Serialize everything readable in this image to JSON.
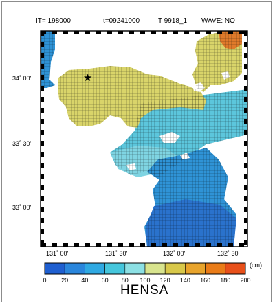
{
  "header": {
    "iteration": "IT=  198000",
    "time": "t=09241000",
    "typhoon": "T 9918_1",
    "wave": "WAVE: NO"
  },
  "map": {
    "lat_labels": [
      "34˚ 00'",
      "33˚ 30'",
      "33˚ 00'"
    ],
    "lon_labels": [
      "131˚ 00'",
      "131˚ 30'",
      "132˚ 00'",
      "132˚ 30'"
    ],
    "marker": "★"
  },
  "colorbar": {
    "title": "HENSA",
    "unit": "(cm)",
    "ticks": [
      "0",
      "20",
      "40",
      "60",
      "80",
      "100",
      "120",
      "140",
      "160",
      "180",
      "200"
    ],
    "colors": [
      "#1f5fd0",
      "#2a86dc",
      "#2fa9e2",
      "#45c6dc",
      "#8ce0e4",
      "#d8e48e",
      "#d8c84a",
      "#e8a42c",
      "#ea7c18",
      "#e8501a"
    ]
  },
  "palette": {
    "blue_deep": "#2a72cc",
    "blue": "#2f93d6",
    "teal": "#3db6dc",
    "cyan": "#7fd4e2",
    "yellow": "#d9d46a",
    "orange": "#e07a2a",
    "land": "#ffffff"
  }
}
